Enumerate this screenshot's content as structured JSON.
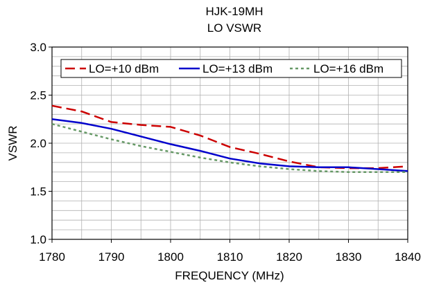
{
  "chart_data": {
    "type": "line",
    "title": "HJK-19MH",
    "subtitle": "LO VSWR",
    "xlabel": "FREQUENCY (MHz)",
    "ylabel": "VSWR",
    "xlim": [
      1780,
      1840
    ],
    "ylim": [
      1.0,
      3.0
    ],
    "xticks": [
      "1780",
      "1790",
      "1800",
      "1810",
      "1820",
      "1830",
      "1840"
    ],
    "yticks": [
      "1.0",
      "1.5",
      "2.0",
      "2.5",
      "3.0"
    ],
    "grid": true,
    "legend_position": "top",
    "series": [
      {
        "name": "LO=+10 dBm",
        "color": "#cc0000",
        "style": "dashed",
        "x": [
          1780,
          1785,
          1790,
          1795,
          1800,
          1805,
          1810,
          1815,
          1820,
          1825,
          1830,
          1835,
          1840
        ],
        "y": [
          2.39,
          2.33,
          2.22,
          2.19,
          2.17,
          2.08,
          1.96,
          1.89,
          1.81,
          1.75,
          1.74,
          1.74,
          1.76
        ]
      },
      {
        "name": "LO=+13 dBm",
        "color": "#0000cc",
        "style": "solid",
        "x": [
          1780,
          1785,
          1790,
          1795,
          1800,
          1805,
          1810,
          1815,
          1820,
          1825,
          1830,
          1835,
          1840
        ],
        "y": [
          2.25,
          2.21,
          2.15,
          2.07,
          1.99,
          1.92,
          1.84,
          1.79,
          1.76,
          1.75,
          1.75,
          1.73,
          1.71
        ]
      },
      {
        "name": "LO=+16 dBm",
        "color": "#669966",
        "style": "dotted",
        "x": [
          1780,
          1785,
          1790,
          1795,
          1800,
          1805,
          1810,
          1815,
          1820,
          1825,
          1830,
          1835,
          1840
        ],
        "y": [
          2.2,
          2.12,
          2.04,
          1.97,
          1.91,
          1.85,
          1.8,
          1.76,
          1.73,
          1.71,
          1.7,
          1.7,
          1.7
        ]
      }
    ]
  }
}
